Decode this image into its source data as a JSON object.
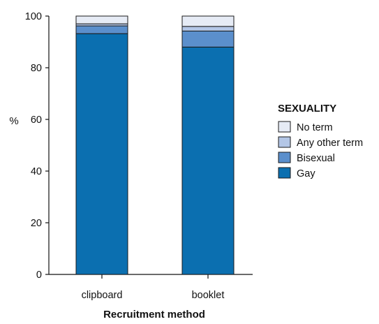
{
  "chart_data": {
    "type": "bar",
    "stacked": true,
    "title": "",
    "xlabel": "Recruitment method",
    "ylabel": "%",
    "ylim": [
      0,
      100
    ],
    "yticks": [
      0,
      20,
      40,
      60,
      80,
      100
    ],
    "categories": [
      "clipboard",
      "booklet"
    ],
    "series": [
      {
        "name": "Gay",
        "color": "#0b6fb0",
        "values": [
          93.2,
          88.0
        ]
      },
      {
        "name": "Bisexual",
        "color": "#5b8fcc",
        "values": [
          3.0,
          6.2
        ]
      },
      {
        "name": "Any other term",
        "color": "#b3c6e6",
        "values": [
          0.8,
          1.8
        ]
      },
      {
        "name": "No term",
        "color": "#e6ebf5",
        "values": [
          3.0,
          4.0
        ]
      }
    ],
    "legend": {
      "title": "SEXUALITY",
      "placement": "right",
      "order": [
        "No term",
        "Any other term",
        "Bisexual",
        "Gay"
      ]
    },
    "grid": false
  }
}
